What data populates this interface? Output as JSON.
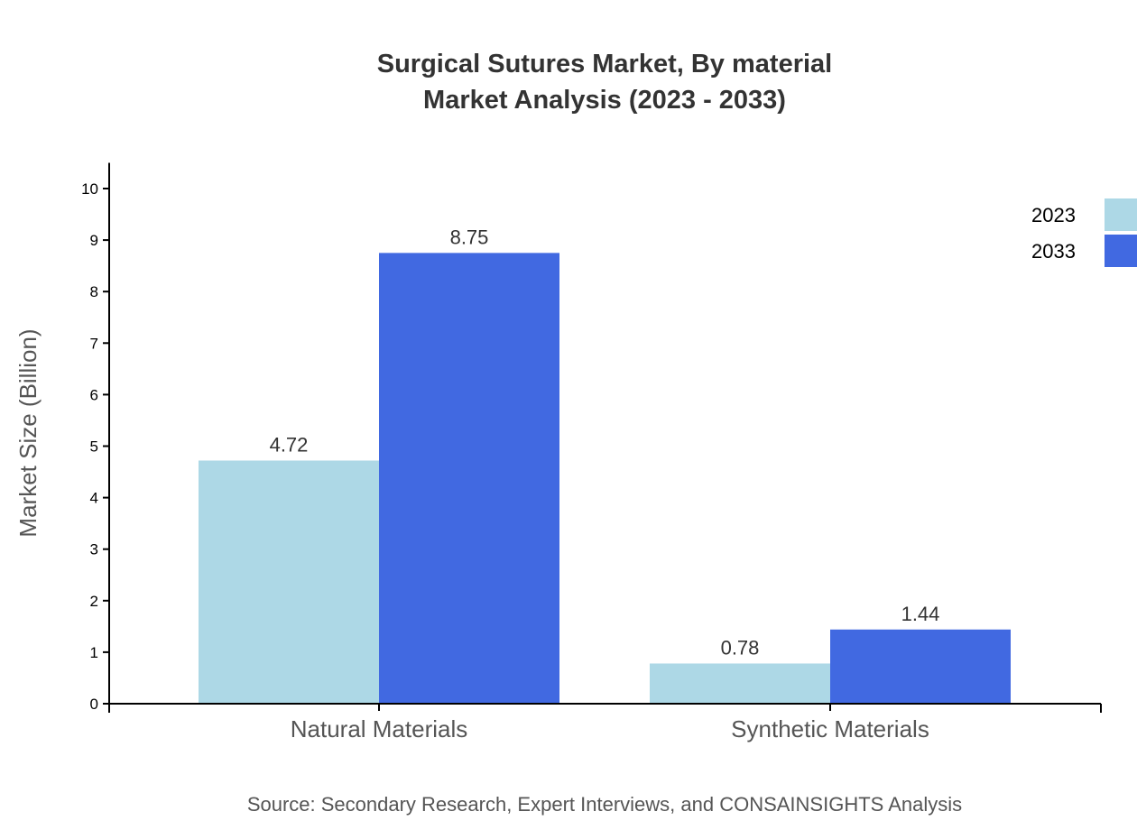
{
  "chart_data": {
    "type": "bar",
    "title": "Surgical Sutures Market, By material",
    "subtitle": "Market Analysis (2023 - 2033)",
    "xlabel": "",
    "ylabel": "Market Size (Billion)",
    "ylim": [
      0,
      10.5
    ],
    "yticks": [
      "0",
      "1",
      "2",
      "3",
      "4",
      "5",
      "6",
      "7",
      "8",
      "9",
      "10"
    ],
    "categories": [
      "Natural Materials",
      "Synthetic Materials"
    ],
    "series": [
      {
        "name": "2023",
        "color": "#ADD8E6",
        "values": [
          4.72,
          0.78
        ],
        "labels": [
          "4.72",
          "0.78"
        ]
      },
      {
        "name": "2033",
        "color": "#4169E1",
        "values": [
          8.75,
          1.44
        ],
        "labels": [
          "8.75",
          "1.44"
        ]
      }
    ],
    "grid": false,
    "legend": "top-right",
    "source": "Source: Secondary Research, Expert Interviews, and CONSAINSIGHTS Analysis"
  }
}
